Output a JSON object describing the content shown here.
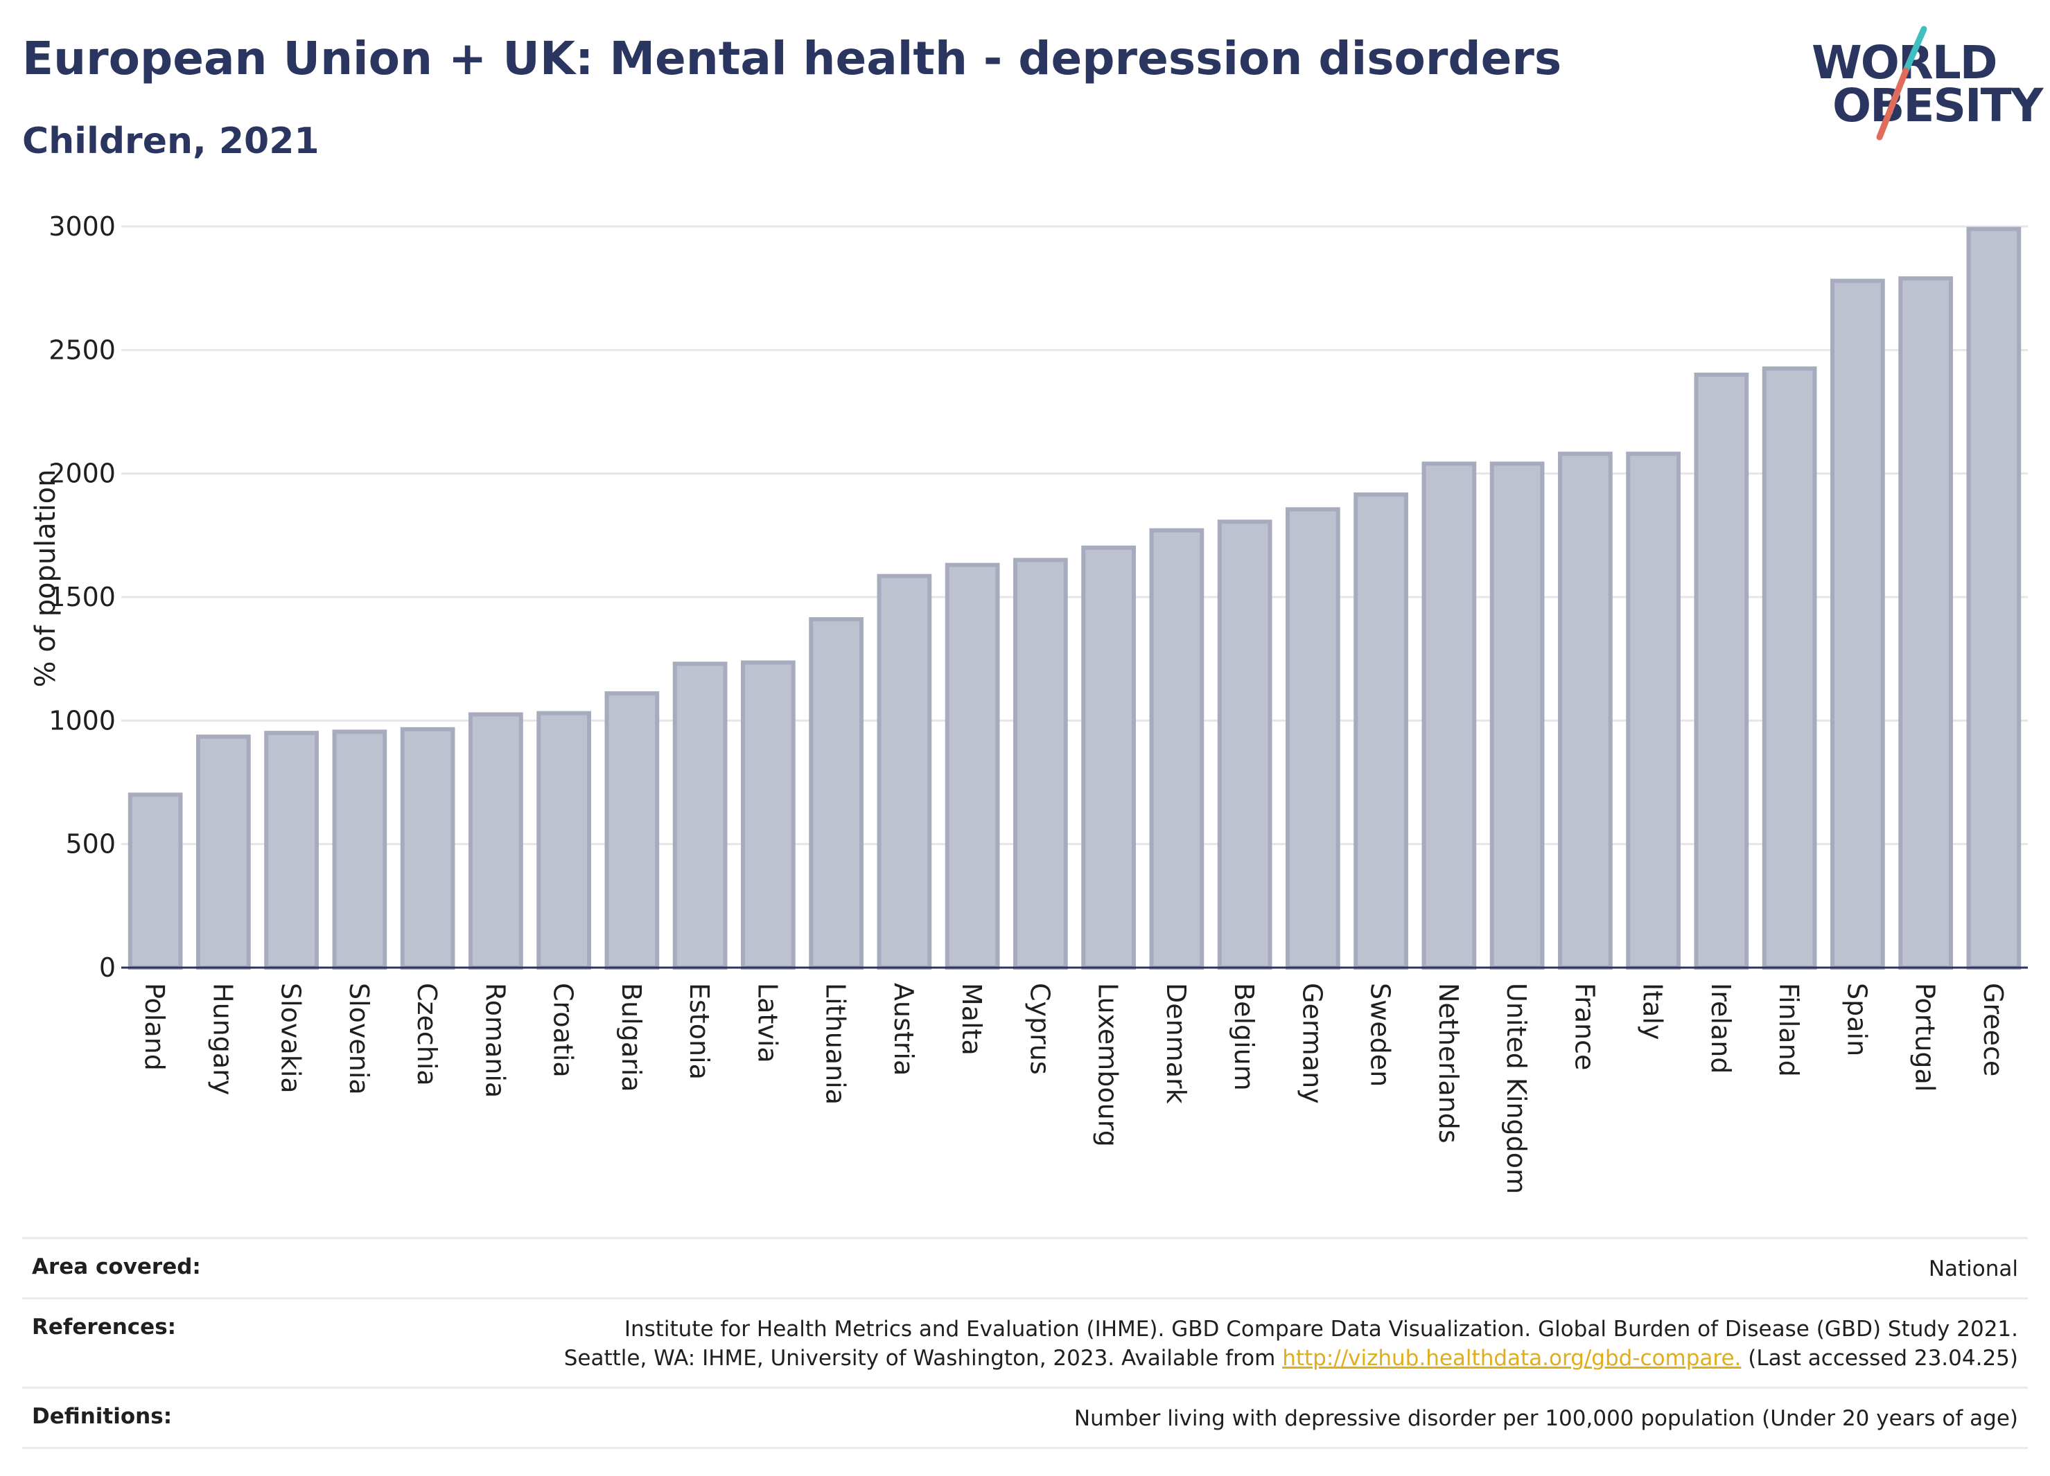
{
  "header": {
    "title": "European Union + UK: Mental health - depression disorders",
    "subtitle": "Children, 2021"
  },
  "logo": {
    "line1": "WORLD",
    "line2": "OBESITY",
    "accent_colors": [
      "#3fbfbf",
      "#e06c5c"
    ]
  },
  "chart_data": {
    "type": "bar",
    "ylabel": "% of population",
    "xlabel": "",
    "ylim": [
      0,
      3000
    ],
    "yticks": [
      0,
      500,
      1000,
      1500,
      2000,
      2500,
      3000
    ],
    "grid": true,
    "bar_color": "#bec2d0",
    "bar_edge_color": "#a6abbe",
    "categories": [
      "Poland",
      "Hungary",
      "Slovakia",
      "Slovenia",
      "Czechia",
      "Romania",
      "Croatia",
      "Bulgaria",
      "Estonia",
      "Latvia",
      "Lithuania",
      "Austria",
      "Malta",
      "Cyprus",
      "Luxembourg",
      "Denmark",
      "Belgium",
      "Germany",
      "Sweden",
      "Netherlands",
      "United Kingdom",
      "France",
      "Italy",
      "Ireland",
      "Finland",
      "Spain",
      "Portugal",
      "Greece"
    ],
    "values": [
      700,
      935,
      950,
      955,
      965,
      1025,
      1030,
      1110,
      1230,
      1235,
      1410,
      1585,
      1630,
      1650,
      1700,
      1770,
      1805,
      1855,
      1915,
      2040,
      2040,
      2080,
      2080,
      2400,
      2425,
      2780,
      2790,
      2990
    ]
  },
  "info": {
    "area_label": "Area covered:",
    "area_value": "National",
    "references_label": "References:",
    "references_line1": "Institute for Health Metrics and Evaluation (IHME). GBD Compare Data Visualization. Global Burden of Disease (GBD) Study 2021.",
    "references_line2_pre": "Seattle, WA: IHME, University of Washington, 2023. Available from ",
    "references_link": "http://vizhub.healthdata.org/gbd-compare.",
    "references_line2_post": " (Last accessed 23.04.25)",
    "definitions_label": "Definitions:",
    "definitions_value": "Number living with depressive disorder per 100,000 population (Under 20 years of age)"
  }
}
